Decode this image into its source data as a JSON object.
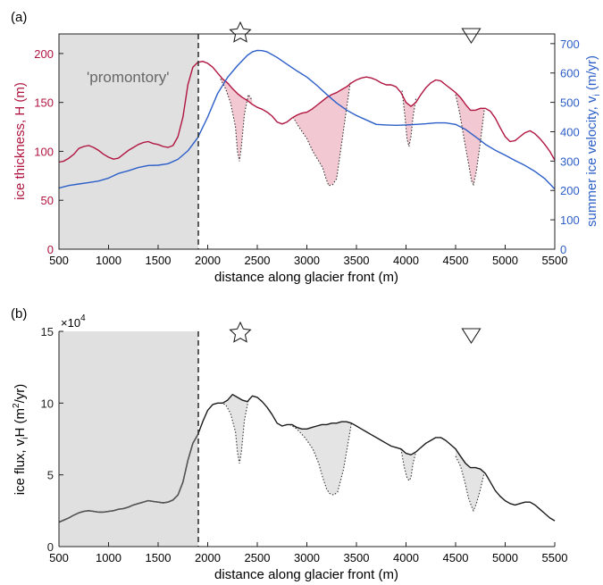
{
  "colors": {
    "thickness": "#b0143f",
    "velocity": "#2c5ec8",
    "flux": "#1a1a1a",
    "promontory_fill": "#e0e0e0",
    "notch_fill_a": "#f2c9d2",
    "notch_fill_b": "#e4e4e4",
    "axis": "#222222"
  },
  "icons": {
    "marker_1": "star-outline-icon",
    "marker_2": "triangle-down-outline-icon"
  },
  "chart_data": [
    {
      "type": "line",
      "panel_label": "(a)",
      "region_label": "'promontory'",
      "xlabel": "distance along glacier front (m)",
      "ylabel": "ice thickness, H (m)",
      "ylabel_right": "summer ice velocity, v",
      "ylabel_right_sub": "i",
      "ylabel_right_unit": " (m/yr)",
      "xlim": [
        500,
        5500
      ],
      "ylim": [
        0,
        220
      ],
      "ylim_right": [
        0,
        733
      ],
      "xticks": [
        "500",
        "1000",
        "1500",
        "2000",
        "2500",
        "3000",
        "3500",
        "4000",
        "4500",
        "5000",
        "5500"
      ],
      "yticks": [
        "0",
        "50",
        "100",
        "150",
        "200"
      ],
      "yticks_right": [
        "0",
        "100",
        "200",
        "300",
        "400",
        "500",
        "600",
        "700"
      ],
      "shaded_region": [
        500,
        1900
      ],
      "divider_x": 1900,
      "markers": {
        "star_x": 2330,
        "triangle_x": 4670
      },
      "series": [
        {
          "axis": "left",
          "x": [
            500,
            550,
            600,
            650,
            700,
            750,
            800,
            850,
            900,
            950,
            1000,
            1050,
            1100,
            1150,
            1200,
            1250,
            1300,
            1350,
            1400,
            1450,
            1500,
            1550,
            1600,
            1650,
            1700,
            1750,
            1800,
            1850,
            1900,
            1950,
            2000,
            2050,
            2100,
            2150,
            2200,
            2250,
            2300,
            2350,
            2400,
            2450,
            2500,
            2550,
            2600,
            2650,
            2700,
            2750,
            2800,
            2850,
            2900,
            2950,
            3000,
            3050,
            3100,
            3150,
            3200,
            3250,
            3300,
            3350,
            3400,
            3450,
            3500,
            3550,
            3600,
            3650,
            3700,
            3750,
            3800,
            3850,
            3900,
            3950,
            4000,
            4050,
            4100,
            4150,
            4200,
            4250,
            4300,
            4350,
            4400,
            4450,
            4500,
            4550,
            4600,
            4650,
            4700,
            4750,
            4800,
            4850,
            4900,
            4950,
            5000,
            5050,
            5100,
            5150,
            5200,
            5250,
            5300,
            5350,
            5400,
            5450,
            5500
          ],
          "y": [
            89,
            90,
            93,
            97,
            103,
            105,
            106,
            104,
            101,
            97,
            94,
            92,
            93,
            97,
            101,
            104,
            107,
            109,
            110,
            108,
            107,
            105,
            104,
            106,
            115,
            135,
            168,
            186,
            191,
            192,
            190,
            186,
            180,
            174,
            170,
            164,
            159,
            155,
            152,
            148,
            145,
            143,
            140,
            136,
            130,
            128,
            130,
            134,
            137,
            139,
            140,
            143,
            147,
            151,
            155,
            158,
            160,
            163,
            166,
            170,
            173,
            175,
            176,
            175,
            173,
            170,
            168,
            168,
            166,
            160,
            150,
            146,
            150,
            158,
            165,
            170,
            173,
            172,
            168,
            164,
            160,
            155,
            148,
            142,
            142,
            144,
            144,
            141,
            134,
            124,
            115,
            110,
            111,
            115,
            119,
            121,
            118,
            113,
            107,
            100,
            91
          ]
        },
        {
          "axis": "right",
          "x": [
            500,
            600,
            700,
            800,
            900,
            1000,
            1100,
            1200,
            1300,
            1400,
            1500,
            1600,
            1700,
            1800,
            1900,
            2000,
            2100,
            2200,
            2300,
            2400,
            2450,
            2500,
            2550,
            2600,
            2700,
            2800,
            2900,
            3000,
            3100,
            3200,
            3300,
            3400,
            3500,
            3600,
            3700,
            3800,
            3900,
            4000,
            4100,
            4200,
            4300,
            4400,
            4500,
            4600,
            4700,
            4800,
            4900,
            5000,
            5100,
            5200,
            5300,
            5400,
            5500
          ],
          "y": [
            208,
            217,
            222,
            227,
            232,
            242,
            258,
            267,
            278,
            285,
            286,
            291,
            306,
            335,
            380,
            450,
            530,
            585,
            625,
            660,
            672,
            677,
            676,
            672,
            653,
            630,
            607,
            586,
            558,
            527,
            498,
            474,
            455,
            440,
            425,
            423,
            422,
            423,
            425,
            427,
            430,
            430,
            425,
            408,
            383,
            357,
            337,
            320,
            302,
            285,
            265,
            240,
            205
          ]
        }
      ],
      "notches": [
        {
          "x": [
            2130,
            2180,
            2230,
            2280,
            2300,
            2320,
            2340,
            2370,
            2410,
            2450
          ],
          "y": [
            174,
            164,
            150,
            125,
            100,
            90,
            105,
            138,
            158,
            152
          ]
        },
        {
          "x": [
            2860,
            2920,
            3000,
            3060,
            3120,
            3160,
            3190,
            3220,
            3260,
            3300,
            3360,
            3440
          ],
          "y": [
            135,
            125,
            113,
            100,
            90,
            83,
            73,
            65,
            66,
            72,
            115,
            172
          ]
        },
        {
          "x": [
            3960,
            3990,
            4010,
            4030,
            4050,
            4070,
            4100
          ],
          "y": [
            162,
            135,
            113,
            105,
            115,
            135,
            154
          ]
        },
        {
          "x": [
            4500,
            4540,
            4590,
            4630,
            4660,
            4680,
            4710,
            4750,
            4790
          ],
          "y": [
            158,
            140,
            110,
            88,
            70,
            66,
            80,
            110,
            143
          ]
        }
      ]
    },
    {
      "type": "line",
      "panel_label": "(b)",
      "xlabel": "distance along glacier front (m)",
      "ylabel": "ice flux, v",
      "ylabel_sub": "i",
      "ylabel_mid": "H (m",
      "ylabel_sup": "2",
      "ylabel_end": "/yr)",
      "exponent_base": "×10",
      "exponent_power": "4",
      "xlim": [
        500,
        5500
      ],
      "ylim": [
        0,
        15
      ],
      "xticks": [
        "500",
        "1000",
        "1500",
        "2000",
        "2500",
        "3000",
        "3500",
        "4000",
        "4500",
        "5000",
        "5500"
      ],
      "yticks": [
        "0",
        "5",
        "10",
        "15"
      ],
      "shaded_region": [
        500,
        1900
      ],
      "divider_x": 1900,
      "markers": {
        "star_x": 2330,
        "triangle_x": 4670
      },
      "series": [
        {
          "x": [
            500,
            550,
            600,
            650,
            700,
            750,
            800,
            850,
            900,
            950,
            1000,
            1050,
            1100,
            1150,
            1200,
            1250,
            1300,
            1350,
            1400,
            1450,
            1500,
            1550,
            1600,
            1650,
            1700,
            1750,
            1800,
            1850,
            1900,
            1950,
            2000,
            2050,
            2100,
            2150,
            2200,
            2250,
            2300,
            2350,
            2400,
            2450,
            2500,
            2550,
            2600,
            2650,
            2700,
            2750,
            2800,
            2850,
            2900,
            2950,
            3000,
            3050,
            3100,
            3150,
            3200,
            3250,
            3300,
            3350,
            3400,
            3450,
            3500,
            3550,
            3600,
            3650,
            3700,
            3750,
            3800,
            3850,
            3900,
            3950,
            4000,
            4050,
            4100,
            4150,
            4200,
            4250,
            4300,
            4350,
            4400,
            4450,
            4500,
            4550,
            4600,
            4650,
            4700,
            4750,
            4800,
            4850,
            4900,
            4950,
            5000,
            5050,
            5100,
            5150,
            5200,
            5250,
            5300,
            5350,
            5400,
            5450,
            5500
          ],
          "y": [
            1.7,
            1.85,
            2.0,
            2.2,
            2.35,
            2.45,
            2.5,
            2.45,
            2.4,
            2.4,
            2.45,
            2.5,
            2.6,
            2.65,
            2.75,
            2.9,
            3.0,
            3.1,
            3.2,
            3.15,
            3.1,
            3.05,
            3.1,
            3.25,
            3.6,
            4.5,
            6.0,
            7.2,
            7.8,
            8.7,
            9.5,
            9.9,
            10.0,
            10.0,
            10.2,
            10.6,
            10.4,
            10.2,
            10.1,
            10.5,
            10.4,
            10.1,
            9.7,
            9.2,
            8.6,
            8.4,
            8.5,
            8.5,
            8.3,
            8.2,
            8.2,
            8.3,
            8.4,
            8.5,
            8.5,
            8.6,
            8.6,
            8.7,
            8.7,
            8.6,
            8.4,
            8.2,
            8.0,
            7.8,
            7.6,
            7.4,
            7.2,
            7.0,
            6.9,
            6.8,
            6.5,
            6.4,
            6.6,
            6.9,
            7.2,
            7.4,
            7.6,
            7.6,
            7.4,
            7.1,
            6.8,
            6.3,
            5.8,
            5.5,
            5.5,
            5.4,
            5.1,
            4.5,
            3.9,
            3.5,
            3.2,
            3.0,
            2.9,
            3.0,
            3.1,
            3.1,
            2.9,
            2.6,
            2.3,
            2.0,
            1.8
          ]
        }
      ],
      "notches": [
        {
          "x": [
            2130,
            2180,
            2230,
            2280,
            2300,
            2320,
            2340,
            2370,
            2410,
            2450
          ],
          "y": [
            10.0,
            9.9,
            9.3,
            8.0,
            6.6,
            5.8,
            6.6,
            8.8,
            10.2,
            10.5
          ]
        },
        {
          "x": [
            2830,
            2900,
            2980,
            3060,
            3120,
            3160,
            3200,
            3230,
            3270,
            3310,
            3370,
            3450
          ],
          "y": [
            8.5,
            8.2,
            7.6,
            6.8,
            5.8,
            4.8,
            4.0,
            3.7,
            3.6,
            3.8,
            5.4,
            8.6
          ]
        },
        {
          "x": [
            3950,
            3980,
            4010,
            4030,
            4050,
            4070,
            4100
          ],
          "y": [
            6.8,
            5.6,
            4.8,
            4.6,
            4.8,
            5.8,
            6.6
          ]
        },
        {
          "x": [
            4500,
            4550,
            4590,
            4630,
            4660,
            4680,
            4710,
            4750,
            4790
          ],
          "y": [
            6.3,
            5.6,
            4.6,
            3.4,
            2.8,
            2.5,
            3.0,
            4.0,
            5.2
          ]
        }
      ]
    }
  ]
}
